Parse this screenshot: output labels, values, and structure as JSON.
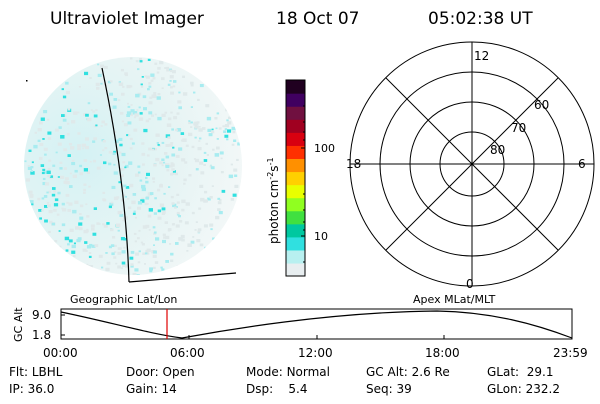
{
  "header": {
    "instrument": "Ultraviolet Imager",
    "date": "18 Oct 07",
    "time": "05:02:38 UT"
  },
  "image_panel": {
    "caption": "Geographic Lat/Lon"
  },
  "colorbar": {
    "unit_prefix": "photon cm",
    "unit_exp1": "-2",
    "unit_mid": "s",
    "unit_exp2": "-1",
    "ticks": [
      {
        "label": "100",
        "value": 100
      },
      {
        "label": "10",
        "value": 10
      }
    ],
    "colors": [
      "#e8eef0",
      "#b8f0f0",
      "#30e0e0",
      "#00c8a0",
      "#40e040",
      "#90ff20",
      "#e8ff00",
      "#ffd000",
      "#ff9000",
      "#ff3000",
      "#d80010",
      "#a00020",
      "#701040",
      "#400060",
      "#200020"
    ]
  },
  "polar_plot": {
    "caption": "Apex MLat/MLT",
    "mlt_labels": {
      "top": "12",
      "left": "18",
      "right": "6",
      "bottom": "0"
    },
    "mlat_labels": [
      "60",
      "70",
      "80"
    ]
  },
  "altitude_strip": {
    "ylabel": "GC Alt",
    "y_ticks": [
      "9.0",
      "1.8"
    ],
    "x_ticks": [
      "00:00",
      "06:00",
      "12:00",
      "18:00",
      "23:59"
    ],
    "current_time_marker": "05:02:38"
  },
  "status": {
    "flt_label": "Flt:",
    "flt_value": "LBHL",
    "ip_label": "IP:",
    "ip_value": "36.0",
    "door_label": "Door:",
    "door_value": "Open",
    "gain_label": "Gain:",
    "gain_value": "14",
    "mode_label": "Mode:",
    "mode_value": "Normal",
    "dsp_label": "Dsp:",
    "dsp_value": "5.4",
    "gcalt_label": "GC Alt:",
    "gcalt_value": "2.6 Re",
    "seq_label": "Seq:",
    "seq_value": "39",
    "glat_label": "GLat:",
    "glat_value": "29.1",
    "glon_label": "GLon:",
    "glon_value": "232.2"
  }
}
